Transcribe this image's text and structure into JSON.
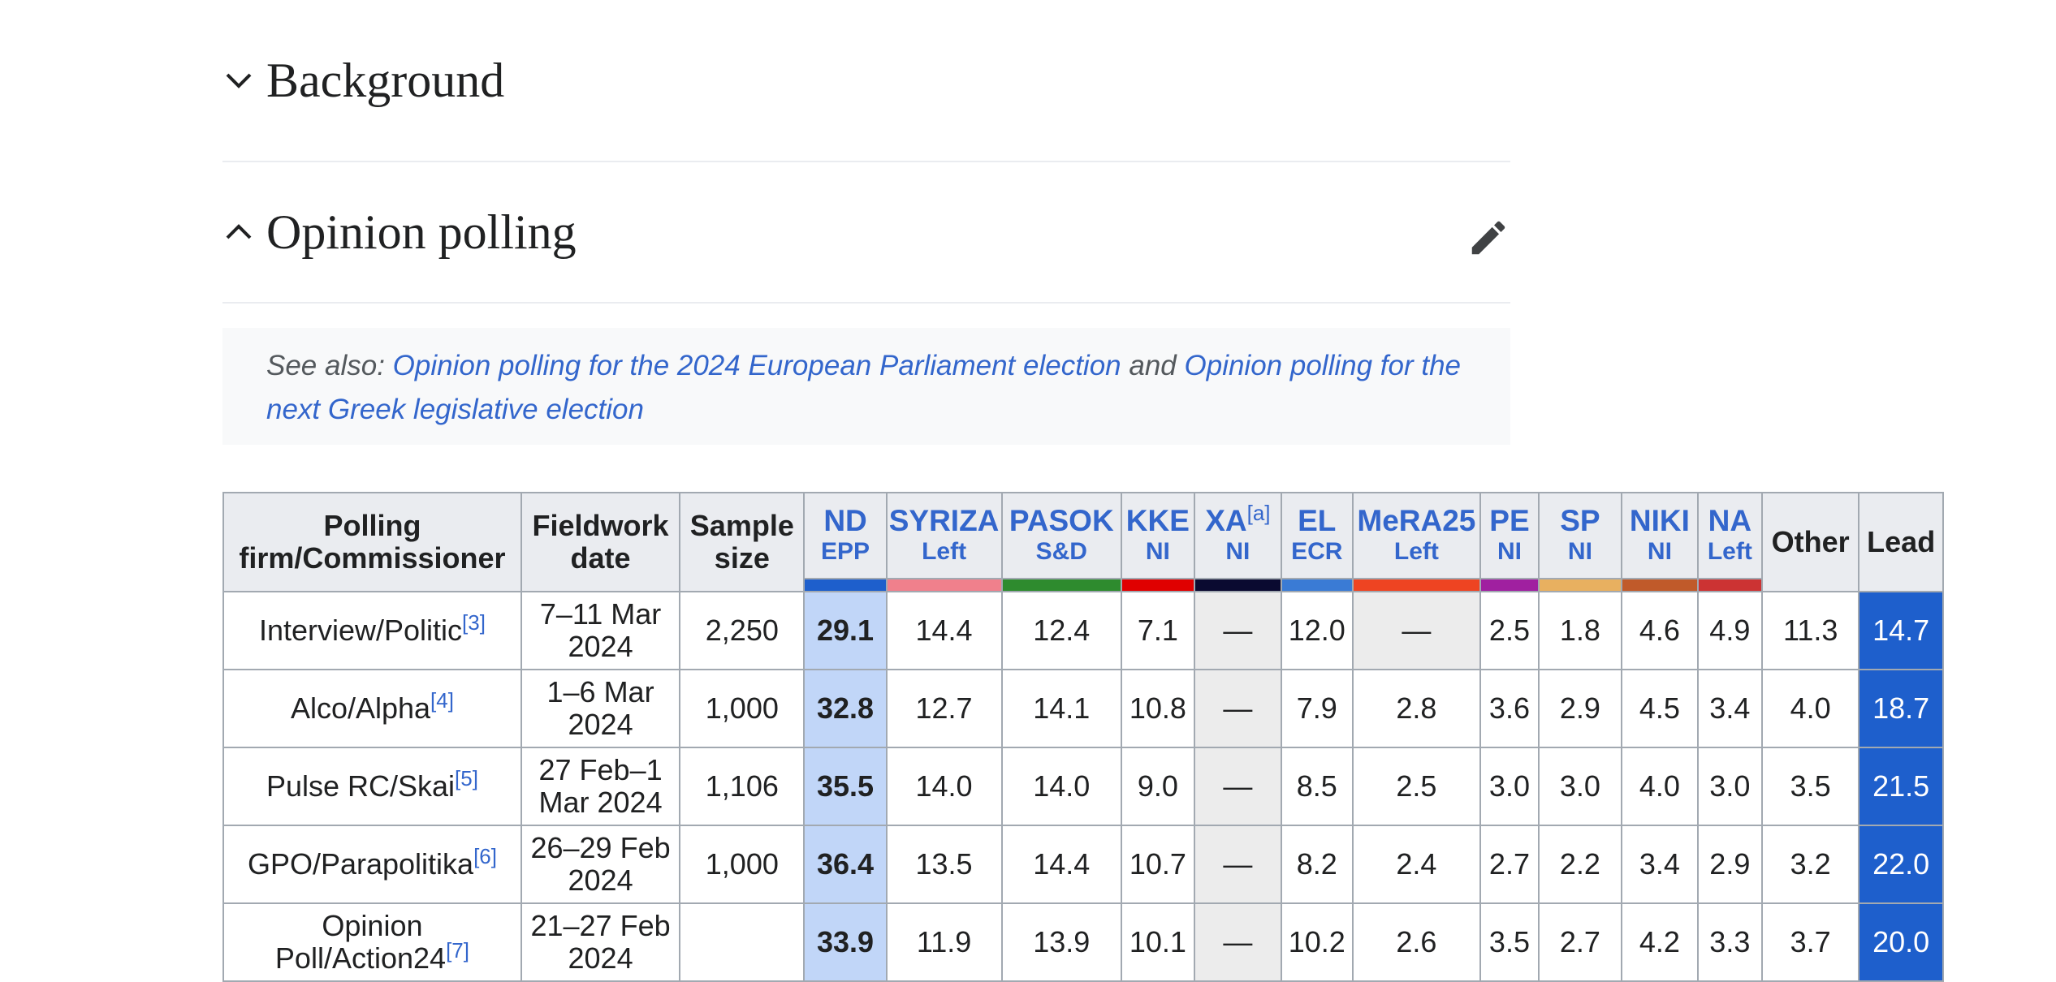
{
  "sections": {
    "background": {
      "title": "Background",
      "icon": "chevron-down-icon"
    },
    "opinion": {
      "title": "Opinion polling",
      "icon": "chevron-up-icon",
      "edit_icon": "pencil-icon"
    }
  },
  "see_also": {
    "prefix": "See also: ",
    "link1": "Opinion polling for the 2024 European Parliament election",
    "mid": " and ",
    "link2": "Opinion polling for the next Greek legislative election"
  },
  "table": {
    "headers": {
      "firm": "Polling firm/Commissioner",
      "date": "Fieldwork date",
      "sample": "Sample size",
      "other": "Other",
      "lead": "Lead"
    },
    "parties": [
      {
        "name": "ND",
        "group": "EPP",
        "color": "#1e5fcc"
      },
      {
        "name": "SYRIZA",
        "group": "Left",
        "color": "#f0808c"
      },
      {
        "name": "PASOK",
        "group": "S&D",
        "color": "#2e8b2e"
      },
      {
        "name": "KKE",
        "group": "NI",
        "color": "#e00000"
      },
      {
        "name": "XA",
        "sup": "[a]",
        "group": "NI",
        "color": "#0a0a30"
      },
      {
        "name": "EL",
        "group": "ECR",
        "color": "#3a7bd5"
      },
      {
        "name": "MeRA25",
        "group": "Left",
        "color": "#ee4422"
      },
      {
        "name": "PE",
        "group": "NI",
        "color": "#a020a0"
      },
      {
        "name": "SP",
        "group": "NI",
        "color": "#e8b060"
      },
      {
        "name": "NIKI",
        "group": "NI",
        "color": "#c05a2a"
      },
      {
        "name": "NA",
        "group": "Left",
        "color": "#cc3333"
      }
    ],
    "rows": [
      {
        "firm": "Interview/Politic",
        "ref": "[3]",
        "date": "7–11 Mar 2024",
        "sample": "2,250",
        "values": [
          "29.1",
          "14.4",
          "12.4",
          "7.1",
          "—",
          "12.0",
          "—",
          "2.5",
          "1.8",
          "4.6",
          "4.9"
        ],
        "other": "11.3",
        "lead": "14.7"
      },
      {
        "firm": "Alco/Alpha",
        "ref": "[4]",
        "date": "1–6 Mar 2024",
        "sample": "1,000",
        "values": [
          "32.8",
          "12.7",
          "14.1",
          "10.8",
          "—",
          "7.9",
          "2.8",
          "3.6",
          "2.9",
          "4.5",
          "3.4"
        ],
        "other": "4.0",
        "lead": "18.7"
      },
      {
        "firm": "Pulse RC/Skai",
        "ref": "[5]",
        "date": "27 Feb–1 Mar 2024",
        "sample": "1,106",
        "values": [
          "35.5",
          "14.0",
          "14.0",
          "9.0",
          "—",
          "8.5",
          "2.5",
          "3.0",
          "3.0",
          "4.0",
          "3.0"
        ],
        "other": "3.5",
        "lead": "21.5"
      },
      {
        "firm": "GPO/Parapolitika",
        "ref": "[6]",
        "date": "26–29 Feb 2024",
        "sample": "1,000",
        "values": [
          "36.4",
          "13.5",
          "14.4",
          "10.7",
          "—",
          "8.2",
          "2.4",
          "2.7",
          "2.2",
          "3.4",
          "2.9"
        ],
        "other": "3.2",
        "lead": "22.0"
      },
      {
        "firm": "Opinion Poll/Action24",
        "ref": "[7]",
        "date": "21–27 Feb 2024",
        "sample": "",
        "values": [
          "33.9",
          "11.9",
          "13.9",
          "10.1",
          "—",
          "10.2",
          "2.6",
          "3.5",
          "2.7",
          "4.2",
          "3.3"
        ],
        "other": "3.7",
        "lead": "20.0"
      }
    ]
  }
}
